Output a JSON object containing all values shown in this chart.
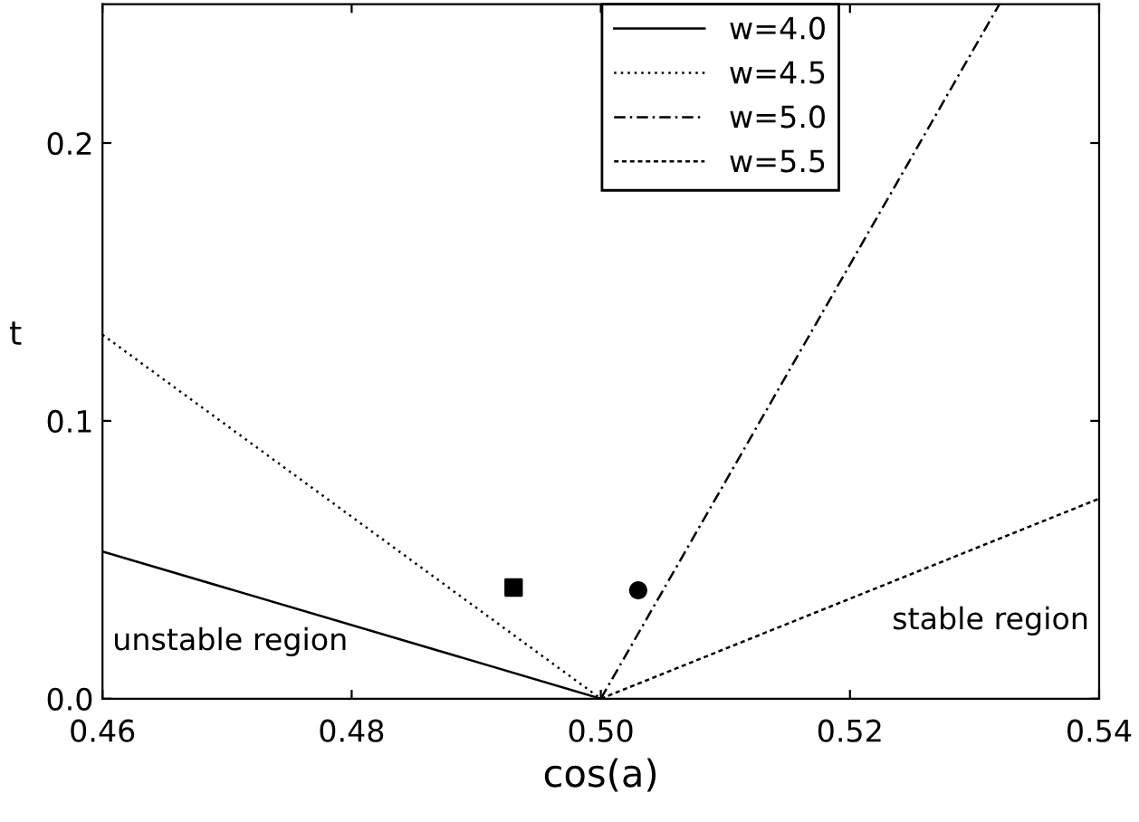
{
  "chart_data": {
    "type": "line",
    "xlabel": "cos(a)",
    "ylabel": "t",
    "xlim": [
      0.46,
      0.54
    ],
    "ylim": [
      0,
      0.25
    ],
    "xticks": [
      {
        "value": 0.46,
        "label": "0.46"
      },
      {
        "value": 0.48,
        "label": "0.48"
      },
      {
        "value": 0.5,
        "label": "0.50"
      },
      {
        "value": 0.52,
        "label": "0.52"
      },
      {
        "value": 0.54,
        "label": "0.54"
      }
    ],
    "yticks": [
      {
        "value": 0,
        "label": "0.0"
      },
      {
        "value": 0.1,
        "label": "0.1"
      },
      {
        "value": 0.2,
        "label": "0.2"
      }
    ],
    "grid": false,
    "legend": "top",
    "annotations": [
      "unstable region",
      "stable region"
    ],
    "series": [
      {
        "name": "w=4.0",
        "color": "#000000",
        "line_style": "solid",
        "x": [
          0.46,
          0.5
        ],
        "values": [
          0.053,
          0
        ]
      },
      {
        "name": "w=4.5",
        "color": "#000000",
        "line_style": "dotted",
        "x": [
          0.46,
          0.5
        ],
        "values": [
          0.131,
          0
        ]
      },
      {
        "name": "w=5.0",
        "color": "#000000",
        "line_style": "dashdot",
        "x": [
          0.5,
          0.532
        ],
        "values": [
          0,
          0.25
        ]
      },
      {
        "name": "w=5.5",
        "color": "#000000",
        "line_style": "dashed",
        "x": [
          0.5,
          0.54
        ],
        "values": [
          0,
          0.072
        ]
      },
      {
        "type": "scatter",
        "color": "#000000",
        "marker": "square",
        "x": [
          0.493
        ],
        "values": [
          0.04
        ]
      },
      {
        "type": "scatter",
        "color": "#000000",
        "marker": "circle",
        "x": [
          0.503
        ],
        "values": [
          0.039
        ]
      }
    ]
  }
}
